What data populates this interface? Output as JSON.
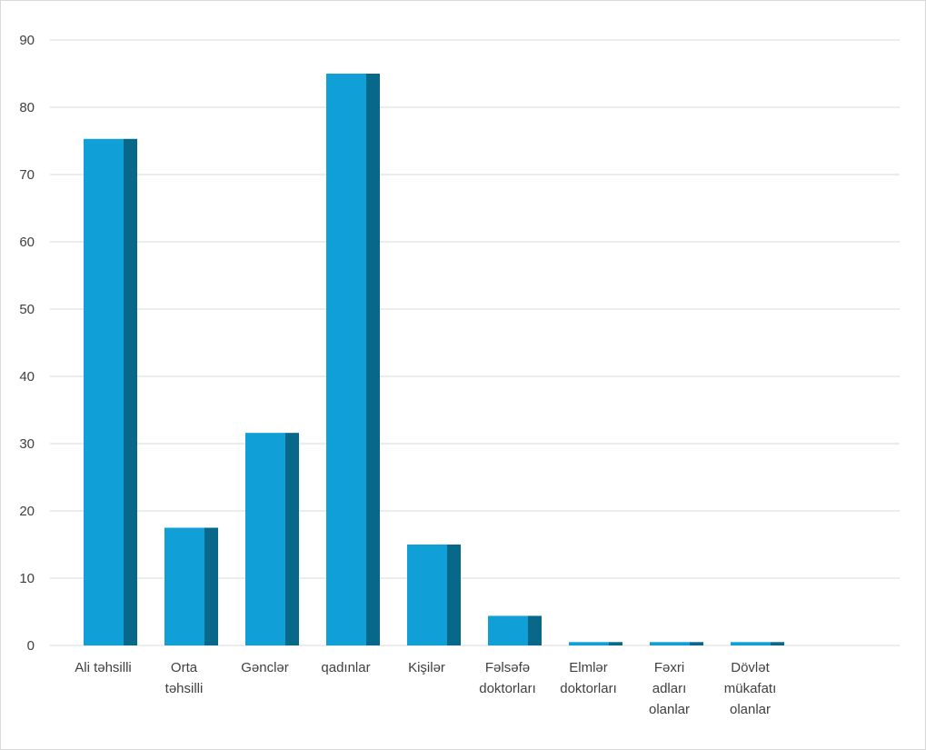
{
  "chart_data": {
    "type": "bar",
    "title": "",
    "xlabel": "",
    "ylabel": "",
    "categories": [
      [
        "Ali təhsilli"
      ],
      [
        "Orta",
        "təhsilli"
      ],
      [
        "Gənclər"
      ],
      [
        "qadınlar"
      ],
      [
        "Kişilər"
      ],
      [
        "Fəlsəfə",
        "doktorları"
      ],
      [
        "Elmlər",
        "doktorları"
      ],
      [
        "Fəxri",
        "adları",
        "olanlar"
      ],
      [
        "Dövlət",
        "mükafatı",
        "olanlar"
      ]
    ],
    "values": [
      75.3,
      17.5,
      31.6,
      85.0,
      15.0,
      4.4,
      0.5,
      0.5,
      0.5
    ],
    "ylim": [
      0,
      90
    ],
    "yticks": [
      0,
      10,
      20,
      30,
      40,
      50,
      60,
      70,
      80,
      90
    ],
    "grid": true,
    "legend": "none",
    "colors": {
      "bar_front": "#119fd8",
      "bar_side": "#07688a",
      "grid": "#d9d9d9",
      "text": "#404040"
    }
  }
}
